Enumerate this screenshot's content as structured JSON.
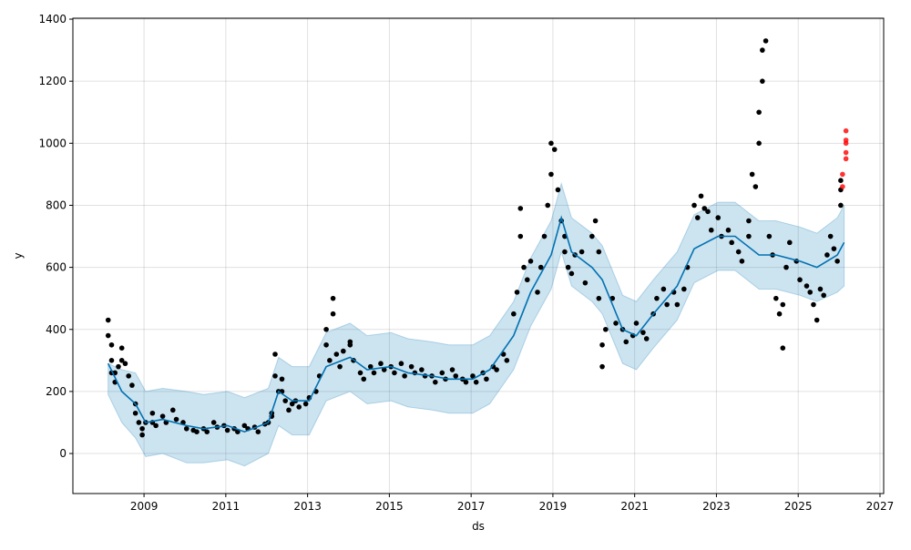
{
  "chart_data": {
    "type": "scatter",
    "title": "",
    "xlabel": "ds",
    "ylabel": "y",
    "xlim": [
      2007.26,
      2027.09
    ],
    "ylim": [
      -129,
      1403
    ],
    "x_ticks": [
      "2009",
      "2011",
      "2013",
      "2015",
      "2017",
      "2019",
      "2021",
      "2023",
      "2025",
      "2027"
    ],
    "y_ticks": [
      "0",
      "200",
      "400",
      "600",
      "800",
      "1000",
      "1200",
      "1400"
    ],
    "grid": true,
    "colors": {
      "actual": "#000000",
      "extra_points": "#ff0000",
      "forecast": "#0072B2",
      "band": "#0072B2"
    },
    "actual": [
      [
        "2008-02",
        430
      ],
      [
        "2008-02",
        380
      ],
      [
        "2008-03",
        350
      ],
      [
        "2008-03",
        300
      ],
      [
        "2008-03",
        260
      ],
      [
        "2008-04",
        230
      ],
      [
        "2008-04",
        260
      ],
      [
        "2008-05",
        280
      ],
      [
        "2008-06",
        300
      ],
      [
        "2008-06",
        340
      ],
      [
        "2008-07",
        290
      ],
      [
        "2008-08",
        250
      ],
      [
        "2008-09",
        220
      ],
      [
        "2008-10",
        160
      ],
      [
        "2008-10",
        130
      ],
      [
        "2008-11",
        100
      ],
      [
        "2008-12",
        80
      ],
      [
        "2008-12",
        60
      ],
      [
        "2009-01",
        100
      ],
      [
        "2009-03",
        100
      ],
      [
        "2009-03",
        130
      ],
      [
        "2009-04",
        90
      ],
      [
        "2009-06",
        120
      ],
      [
        "2009-07",
        100
      ],
      [
        "2009-09",
        140
      ],
      [
        "2009-10",
        110
      ],
      [
        "2009-12",
        100
      ],
      [
        "2010-01",
        80
      ],
      [
        "2010-03",
        75
      ],
      [
        "2010-04",
        70
      ],
      [
        "2010-06",
        80
      ],
      [
        "2010-07",
        70
      ],
      [
        "2010-09",
        100
      ],
      [
        "2010-10",
        85
      ],
      [
        "2010-12",
        90
      ],
      [
        "2011-01",
        75
      ],
      [
        "2011-03",
        80
      ],
      [
        "2011-04",
        70
      ],
      [
        "2011-06",
        90
      ],
      [
        "2011-07",
        80
      ],
      [
        "2011-09",
        85
      ],
      [
        "2011-10",
        70
      ],
      [
        "2011-12",
        95
      ],
      [
        "2012-01",
        100
      ],
      [
        "2012-02",
        120
      ],
      [
        "2012-02",
        130
      ],
      [
        "2012-03",
        320
      ],
      [
        "2012-03",
        250
      ],
      [
        "2012-04",
        200
      ],
      [
        "2012-05",
        200
      ],
      [
        "2012-05",
        240
      ],
      [
        "2012-06",
        170
      ],
      [
        "2012-07",
        140
      ],
      [
        "2012-08",
        160
      ],
      [
        "2012-09",
        170
      ],
      [
        "2012-10",
        150
      ],
      [
        "2012-12",
        160
      ],
      [
        "2013-01",
        180
      ],
      [
        "2013-03",
        200
      ],
      [
        "2013-04",
        250
      ],
      [
        "2013-06",
        350
      ],
      [
        "2013-06",
        400
      ],
      [
        "2013-07",
        300
      ],
      [
        "2013-08",
        500
      ],
      [
        "2013-08",
        450
      ],
      [
        "2013-09",
        320
      ],
      [
        "2013-10",
        280
      ],
      [
        "2013-11",
        330
      ],
      [
        "2014-01",
        350
      ],
      [
        "2014-01",
        360
      ],
      [
        "2014-02",
        300
      ],
      [
        "2014-04",
        260
      ],
      [
        "2014-05",
        240
      ],
      [
        "2014-07",
        280
      ],
      [
        "2014-08",
        260
      ],
      [
        "2014-10",
        290
      ],
      [
        "2014-11",
        270
      ],
      [
        "2015-01",
        280
      ],
      [
        "2015-02",
        260
      ],
      [
        "2015-04",
        290
      ],
      [
        "2015-05",
        250
      ],
      [
        "2015-07",
        280
      ],
      [
        "2015-08",
        260
      ],
      [
        "2015-10",
        270
      ],
      [
        "2015-11",
        250
      ],
      [
        "2016-01",
        250
      ],
      [
        "2016-02",
        230
      ],
      [
        "2016-04",
        260
      ],
      [
        "2016-05",
        240
      ],
      [
        "2016-07",
        270
      ],
      [
        "2016-08",
        250
      ],
      [
        "2016-10",
        240
      ],
      [
        "2016-11",
        230
      ],
      [
        "2017-01",
        250
      ],
      [
        "2017-02",
        230
      ],
      [
        "2017-04",
        260
      ],
      [
        "2017-05",
        240
      ],
      [
        "2017-07",
        280
      ],
      [
        "2017-08",
        270
      ],
      [
        "2017-10",
        320
      ],
      [
        "2017-11",
        300
      ],
      [
        "2018-01",
        450
      ],
      [
        "2018-02",
        520
      ],
      [
        "2018-03",
        700
      ],
      [
        "2018-03",
        790
      ],
      [
        "2018-04",
        600
      ],
      [
        "2018-05",
        560
      ],
      [
        "2018-06",
        620
      ],
      [
        "2018-08",
        520
      ],
      [
        "2018-09",
        600
      ],
      [
        "2018-10",
        700
      ],
      [
        "2018-11",
        800
      ],
      [
        "2018-12",
        900
      ],
      [
        "2018-12",
        1000
      ],
      [
        "2019-01",
        980
      ],
      [
        "2019-02",
        850
      ],
      [
        "2019-03",
        750
      ],
      [
        "2019-04",
        650
      ],
      [
        "2019-04",
        700
      ],
      [
        "2019-05",
        600
      ],
      [
        "2019-06",
        580
      ],
      [
        "2019-07",
        640
      ],
      [
        "2019-09",
        650
      ],
      [
        "2019-10",
        550
      ],
      [
        "2019-12",
        700
      ],
      [
        "2020-01",
        750
      ],
      [
        "2020-02",
        650
      ],
      [
        "2020-02",
        500
      ],
      [
        "2020-03",
        280
      ],
      [
        "2020-03",
        350
      ],
      [
        "2020-04",
        400
      ],
      [
        "2020-06",
        500
      ],
      [
        "2020-07",
        420
      ],
      [
        "2020-09",
        400
      ],
      [
        "2020-10",
        360
      ],
      [
        "2020-12",
        380
      ],
      [
        "2021-01",
        420
      ],
      [
        "2021-03",
        390
      ],
      [
        "2021-04",
        370
      ],
      [
        "2021-06",
        450
      ],
      [
        "2021-07",
        500
      ],
      [
        "2021-09",
        530
      ],
      [
        "2021-10",
        480
      ],
      [
        "2021-12",
        520
      ],
      [
        "2022-01",
        480
      ],
      [
        "2022-03",
        530
      ],
      [
        "2022-04",
        600
      ],
      [
        "2022-06",
        800
      ],
      [
        "2022-07",
        760
      ],
      [
        "2022-08",
        830
      ],
      [
        "2022-09",
        790
      ],
      [
        "2022-10",
        780
      ],
      [
        "2022-11",
        720
      ],
      [
        "2023-01",
        760
      ],
      [
        "2023-02",
        700
      ],
      [
        "2023-04",
        720
      ],
      [
        "2023-05",
        680
      ],
      [
        "2023-07",
        650
      ],
      [
        "2023-08",
        620
      ],
      [
        "2023-10",
        700
      ],
      [
        "2023-10",
        750
      ],
      [
        "2023-11",
        900
      ],
      [
        "2023-12",
        860
      ],
      [
        "2024-01",
        1000
      ],
      [
        "2024-01",
        1100
      ],
      [
        "2024-02",
        1200
      ],
      [
        "2024-02",
        1300
      ],
      [
        "2024-03",
        1330
      ],
      [
        "2024-04",
        700
      ],
      [
        "2024-05",
        640
      ],
      [
        "2024-06",
        500
      ],
      [
        "2024-07",
        450
      ],
      [
        "2024-08",
        340
      ],
      [
        "2024-08",
        480
      ],
      [
        "2024-09",
        600
      ],
      [
        "2024-10",
        680
      ],
      [
        "2024-12",
        620
      ],
      [
        "2025-01",
        560
      ],
      [
        "2025-03",
        540
      ],
      [
        "2025-04",
        520
      ],
      [
        "2025-05",
        480
      ],
      [
        "2025-06",
        430
      ],
      [
        "2025-07",
        530
      ],
      [
        "2025-08",
        510
      ],
      [
        "2025-09",
        640
      ],
      [
        "2025-10",
        700
      ],
      [
        "2025-11",
        660
      ],
      [
        "2025-12",
        620
      ],
      [
        "2026-01",
        800
      ],
      [
        "2026-01",
        850
      ],
      [
        "2026-01",
        880
      ]
    ],
    "extra_points": [
      [
        "2026-01",
        860
      ],
      [
        "2026-01",
        900
      ],
      [
        "2026-02",
        950
      ],
      [
        "2026-02",
        1000
      ],
      [
        "2026-02",
        1040
      ],
      [
        "2026-02",
        1010
      ],
      [
        "2026-02",
        970
      ]
    ],
    "forecast": {
      "ds": [
        "2008-02",
        "2008-06",
        "2008-10",
        "2009-01",
        "2009-06",
        "2010-01",
        "2010-06",
        "2011-01",
        "2011-06",
        "2012-01",
        "2012-04",
        "2012-08",
        "2013-01",
        "2013-06",
        "2014-01",
        "2014-06",
        "2015-01",
        "2015-06",
        "2016-01",
        "2016-06",
        "2017-01",
        "2017-06",
        "2018-01",
        "2018-06",
        "2018-12",
        "2019-03",
        "2019-06",
        "2019-12",
        "2020-03",
        "2020-09",
        "2021-01",
        "2021-06",
        "2022-01",
        "2022-06",
        "2023-01",
        "2023-06",
        "2024-01",
        "2024-06",
        "2025-01",
        "2025-06",
        "2025-12",
        "2026-02"
      ],
      "yhat": [
        290,
        200,
        160,
        100,
        110,
        90,
        80,
        90,
        70,
        100,
        200,
        170,
        170,
        280,
        310,
        270,
        280,
        260,
        250,
        240,
        240,
        270,
        380,
        520,
        640,
        760,
        650,
        600,
        560,
        400,
        380,
        450,
        540,
        660,
        700,
        700,
        640,
        640,
        620,
        600,
        640,
        680
      ],
      "yhat_lower": [
        190,
        100,
        50,
        -10,
        0,
        -30,
        -30,
        -20,
        -40,
        0,
        90,
        60,
        60,
        170,
        200,
        160,
        170,
        150,
        140,
        130,
        130,
        160,
        270,
        410,
        530,
        650,
        540,
        490,
        450,
        290,
        270,
        340,
        430,
        550,
        590,
        590,
        530,
        530,
        510,
        490,
        520,
        540
      ],
      "yhat_upper": [
        290,
        270,
        260,
        200,
        210,
        200,
        190,
        200,
        180,
        210,
        310,
        280,
        280,
        390,
        420,
        380,
        390,
        370,
        360,
        350,
        350,
        380,
        490,
        630,
        750,
        870,
        760,
        710,
        670,
        510,
        490,
        560,
        650,
        770,
        810,
        810,
        750,
        750,
        730,
        710,
        760,
        800
      ]
    }
  }
}
